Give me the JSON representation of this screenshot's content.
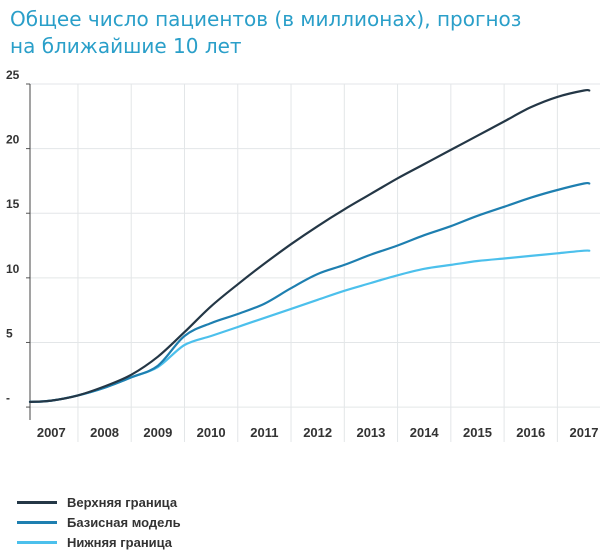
{
  "title_lines": [
    "Общее число пациентов (в миллионах), прогноз",
    "на ближайшие 10 лет"
  ],
  "chart_data": {
    "type": "line",
    "title": "Общее число пациентов (в миллионах), прогноз на ближайшие 10 лет",
    "xlabel": "",
    "ylabel": "",
    "grid": true,
    "legend_position": "bottom-left",
    "y_ticks": [
      {
        "value": 0,
        "label": "-"
      },
      {
        "value": 5,
        "label": "5"
      },
      {
        "value": 10,
        "label": "10"
      },
      {
        "value": 15,
        "label": "15"
      },
      {
        "value": 20,
        "label": "20"
      },
      {
        "value": 25,
        "label": "25"
      }
    ],
    "ylim": [
      -1,
      25
    ],
    "x_ticks": [
      "2007",
      "2008",
      "2009",
      "2010",
      "2011",
      "2012",
      "2013",
      "2014",
      "2015",
      "2016",
      "2017"
    ],
    "xlim": [
      2006.6,
      2017.3
    ],
    "series": [
      {
        "name": "Верхняя граница",
        "color": "#243746",
        "x": [
          2006.6,
          2007,
          2007.5,
          2008,
          2008.5,
          2009,
          2009.5,
          2010,
          2010.5,
          2011,
          2011.5,
          2012,
          2012.5,
          2013,
          2013.5,
          2014,
          2014.5,
          2015,
          2015.5,
          2016,
          2016.5,
          2017,
          2017.1
        ],
        "y": [
          0.4,
          0.5,
          0.9,
          1.6,
          2.5,
          3.9,
          5.8,
          7.8,
          9.5,
          11.1,
          12.6,
          14.0,
          15.3,
          16.5,
          17.7,
          18.8,
          19.9,
          21.0,
          22.1,
          23.2,
          24.0,
          24.5,
          24.5
        ]
      },
      {
        "name": "Базисная модель",
        "color": "#1e7fb0",
        "x": [
          2006.6,
          2007,
          2007.5,
          2008,
          2008.5,
          2009,
          2009.5,
          2010,
          2010.5,
          2011,
          2011.5,
          2012,
          2012.5,
          2013,
          2013.5,
          2014,
          2014.5,
          2015,
          2015.5,
          2016,
          2016.5,
          2017,
          2017.1
        ],
        "y": [
          0.4,
          0.5,
          0.9,
          1.5,
          2.3,
          3.2,
          5.5,
          6.5,
          7.2,
          8.0,
          9.2,
          10.3,
          11.0,
          11.8,
          12.5,
          13.3,
          14.0,
          14.8,
          15.5,
          16.2,
          16.8,
          17.3,
          17.3
        ]
      },
      {
        "name": "Нижняя граница",
        "color": "#4cc0ec",
        "x": [
          2006.6,
          2007,
          2007.5,
          2008,
          2008.5,
          2009,
          2009.5,
          2010,
          2010.5,
          2011,
          2011.5,
          2012,
          2012.5,
          2013,
          2013.5,
          2014,
          2014.5,
          2015,
          2015.5,
          2016,
          2016.5,
          2017,
          2017.1
        ],
        "y": [
          0.4,
          0.5,
          0.9,
          1.5,
          2.3,
          3.1,
          4.8,
          5.5,
          6.2,
          6.9,
          7.6,
          8.3,
          9.0,
          9.6,
          10.2,
          10.7,
          11.0,
          11.3,
          11.5,
          11.7,
          11.9,
          12.1,
          12.1
        ]
      }
    ]
  }
}
